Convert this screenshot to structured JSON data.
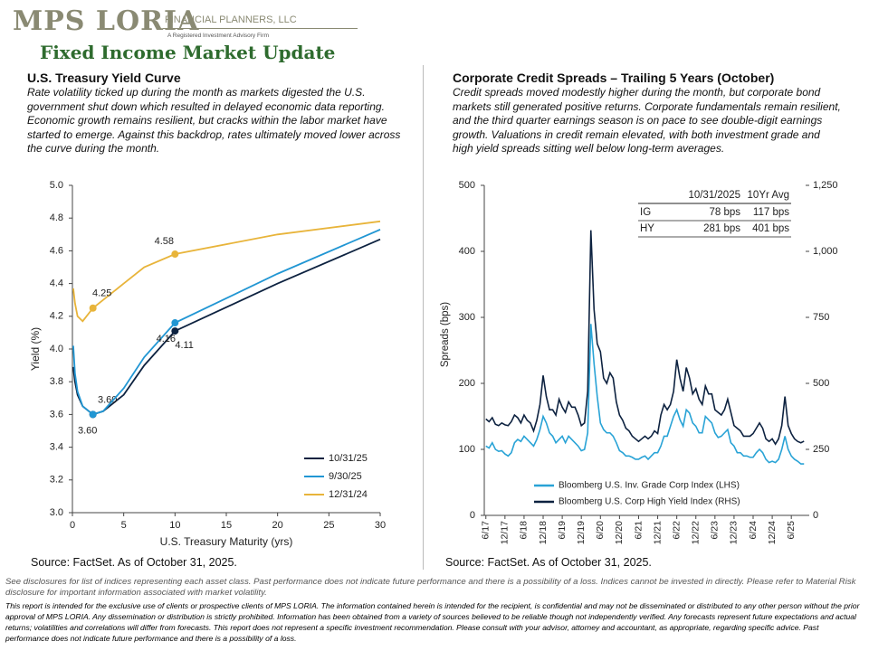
{
  "header": {
    "logo": "MPS LORIA",
    "firm": "FINANCIAL PLANNERS, LLC",
    "tagline": "A Registered Investment Advisory Firm",
    "title": "Fixed Income Market Update"
  },
  "chart_data": [
    {
      "type": "line",
      "title": "U.S. Treasury Yield Curve",
      "subtitle": "Rate volatility ticked up during the month as markets digested the U.S. government  shut down  which resulted in delayed economic data reporting.  Economic growth remains resilient, but cracks within the labor market have  started to emerge.  Against this backdrop, rates ultimately moved lower  across the curve during the month.",
      "x_label": "U.S. Treasury Maturity (yrs)",
      "y_label": "Yield (%)",
      "x": [
        0.083,
        0.25,
        0.5,
        1,
        2,
        3,
        5,
        7,
        10,
        20,
        30
      ],
      "xlim": [
        0,
        30
      ],
      "xticks": [
        0,
        5,
        10,
        15,
        20,
        25,
        30
      ],
      "ylim": [
        3.0,
        5.0
      ],
      "yticks": [
        {
          "value": 3.0,
          "label": "3.0"
        },
        3.2,
        3.4,
        3.6,
        3.8,
        {
          "value": 4.0,
          "label": "4.0"
        },
        4.2,
        4.4,
        4.6,
        4.8,
        {
          "value": 5.0,
          "label": "5.0"
        }
      ],
      "legend": "lower right",
      "series": [
        {
          "name": "10/31/25",
          "color": "#0d2240",
          "values": [
            3.89,
            3.8,
            3.72,
            3.65,
            3.6,
            3.62,
            3.72,
            3.9,
            4.11,
            4.4,
            4.67
          ],
          "value_labels": [
            null,
            null,
            null,
            null,
            "3.60",
            null,
            null,
            null,
            "4.11",
            null,
            null
          ]
        },
        {
          "name": "9/30/25",
          "color": "#2196d3",
          "values": [
            4.02,
            3.85,
            3.74,
            3.65,
            3.6,
            3.62,
            3.76,
            3.95,
            4.16,
            4.46,
            4.73
          ],
          "value_labels": [
            null,
            null,
            null,
            null,
            "3.60",
            null,
            null,
            null,
            "4.16",
            null,
            null
          ]
        },
        {
          "name": "12/31/24",
          "color": "#e8b43a",
          "values": [
            4.37,
            4.28,
            4.2,
            4.17,
            4.25,
            4.3,
            4.4,
            4.5,
            4.58,
            4.7,
            4.78
          ],
          "value_labels": [
            null,
            null,
            null,
            null,
            "4.25",
            null,
            null,
            null,
            "4.58",
            null,
            null
          ]
        }
      ],
      "source": "Source: FactSet. As of October 31, 2025."
    },
    {
      "type": "line",
      "title": "Corporate Credit Spreads – Trailing 5 Years (October)",
      "subtitle": "Credit spreads moved modestly higher during the month, but corporate bond markets still generated positive returns. Corporate  fundamentals remain resilient, and the third quarter earnings season is on pace to see double-digit earnings growth.  Valuations in credit remain elevated, with both investment grade and high yield spreads sitting well below long-term averages.",
      "y_label": "Spreads (bps)",
      "categories": [
        "6/17",
        null,
        null,
        null,
        null,
        null,
        "12/17",
        null,
        null,
        null,
        null,
        null,
        "6/18",
        null,
        null,
        null,
        null,
        null,
        "12/18",
        null,
        null,
        null,
        null,
        null,
        "6/19",
        null,
        null,
        null,
        null,
        null,
        "12/19",
        null,
        null,
        null,
        null,
        null,
        "6/20",
        null,
        null,
        null,
        null,
        null,
        "12/20",
        null,
        null,
        null,
        null,
        null,
        "6/21",
        null,
        null,
        null,
        null,
        null,
        "12/21",
        null,
        null,
        null,
        null,
        null,
        "6/22",
        null,
        null,
        null,
        null,
        null,
        "12/22",
        null,
        null,
        null,
        null,
        null,
        "6/23",
        null,
        null,
        null,
        null,
        null,
        "12/23",
        null,
        null,
        null,
        null,
        null,
        "6/24",
        null,
        null,
        null,
        null,
        null,
        "12/24",
        null,
        null,
        null,
        null,
        null,
        "6/25",
        null,
        null,
        null,
        null
      ],
      "ylim": [
        0,
        500
      ],
      "yticks": [
        0,
        100,
        200,
        300,
        400,
        500
      ],
      "y2lim": [
        0,
        1250
      ],
      "y2ticks": [
        0,
        250,
        500,
        750,
        {
          "value": 1000,
          "label": "1,000"
        },
        {
          "value": 1250,
          "label": "1,250"
        }
      ],
      "legend": "lower left",
      "series": [
        {
          "name": "Bloomberg U.S. Inv. Grade Corp Index (LHS)",
          "color": "#29a3d6",
          "values": [
            105,
            102,
            110,
            100,
            97,
            98,
            93,
            90,
            95,
            110,
            115,
            112,
            120,
            115,
            110,
            105,
            115,
            130,
            150,
            140,
            125,
            120,
            110,
            115,
            120,
            110,
            120,
            115,
            110,
            105,
            98,
            100,
            125,
            290,
            230,
            180,
            140,
            130,
            125,
            125,
            120,
            110,
            98,
            95,
            90,
            90,
            88,
            85,
            85,
            88,
            90,
            85,
            90,
            95,
            95,
            105,
            120,
            120,
            135,
            150,
            160,
            145,
            135,
            160,
            155,
            140,
            135,
            125,
            125,
            150,
            145,
            140,
            125,
            118,
            120,
            125,
            130,
            110,
            105,
            95,
            95,
            90,
            90,
            88,
            88,
            95,
            100,
            95,
            85,
            80,
            82,
            80,
            85,
            100,
            120,
            100,
            90,
            85,
            82,
            78,
            78
          ]
        },
        {
          "name": "Bloomberg U.S. Corp High Yield Index (RHS)",
          "color": "#0d2240",
          "axis": "y2",
          "values": [
            365,
            355,
            370,
            345,
            340,
            350,
            343,
            340,
            355,
            380,
            370,
            350,
            380,
            360,
            350,
            320,
            360,
            420,
            530,
            450,
            400,
            400,
            380,
            440,
            410,
            390,
            430,
            410,
            410,
            380,
            340,
            350,
            470,
            1080,
            780,
            650,
            620,
            520,
            500,
            540,
            520,
            430,
            380,
            360,
            330,
            320,
            300,
            290,
            280,
            290,
            300,
            290,
            300,
            320,
            310,
            380,
            420,
            400,
            420,
            470,
            590,
            520,
            470,
            560,
            520,
            460,
            480,
            440,
            420,
            490,
            460,
            460,
            400,
            390,
            380,
            400,
            440,
            390,
            340,
            330,
            320,
            300,
            300,
            300,
            310,
            330,
            350,
            330,
            290,
            280,
            290,
            270,
            290,
            340,
            450,
            340,
            310,
            290,
            280,
            275,
            281
          ]
        }
      ],
      "table": {
        "columns": [
          "10/31/2025",
          "10Yr Avg"
        ],
        "rows": [
          [
            "IG",
            "78 bps",
            "117 bps"
          ],
          [
            "HY",
            "281 bps",
            "401 bps"
          ]
        ]
      },
      "source": "Source: FactSet. As of October 31, 2025."
    }
  ],
  "footer": {
    "disclosure": "See disclosures for list of indices representing each asset class. Past performance does not indicate future performance and there is a possibility of a loss. Indices cannot be invested in directly. Please refer to Material Risk disclosure for important information associated with market volatility.",
    "legal": "This report is intended for the exclusive use of clients or prospective clients of MPS LORIA. The information contained herein is intended for the recipient, is confidential and may not be disseminated or distributed to any other person without the prior approval of MPS LORIA. Any dissemination or distribution is strictly prohibited. Information has been obtained from a variety of sources believed to be reliable though not independently verified. Any forecasts represent future expectations and actual returns; volatilities and correlations will differ from forecasts. This report does not represent a specific investment recommendation. Please consult with your advisor, attorney and accountant, as appropriate, regarding specific advice. Past performance does not indicate future performance and there is a possibility of a loss."
  }
}
